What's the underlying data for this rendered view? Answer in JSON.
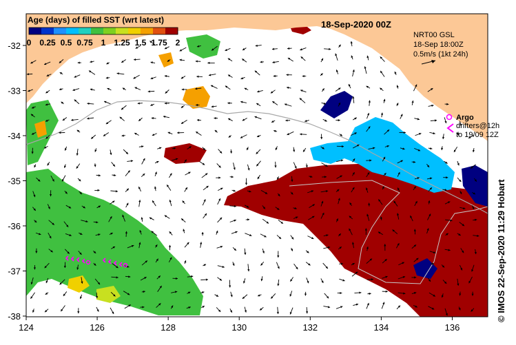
{
  "colorbar": {
    "title": "Age (days) of filled SST (wrt latest)",
    "ticks": [
      "0",
      "0.25",
      "0.5",
      "0.75",
      "1",
      "1.25",
      "1.5",
      "1.75",
      "2"
    ],
    "colors": [
      "#000080",
      "#0033cc",
      "#1e90ff",
      "#00bfff",
      "#20d0c0",
      "#40c040",
      "#7fd020",
      "#c8e020",
      "#f0d000",
      "#f5a000",
      "#e05010",
      "#a00000"
    ]
  },
  "map": {
    "date_title": "18-Sep-2020 00Z",
    "x_ticks": [
      "124",
      "126",
      "128",
      "130",
      "132",
      "134",
      "136"
    ],
    "y_ticks": [
      "-32",
      "-33",
      "-34",
      "-35",
      "-36",
      "-37",
      "-38"
    ],
    "land_color": "#fcc896",
    "ocean_color": "#ffffff",
    "current_arrow_icon": "arrow-icon"
  },
  "current_legend": {
    "line1": "NRT00 GSL",
    "line2": "18-Sep 18:00Z",
    "line3": "0.5m/s (1kt 24h)"
  },
  "argo_legend": {
    "argo_label": "Argo",
    "drifters_label": "drifters@12h",
    "drifters_date": "to 19/09 12Z",
    "marker_color": "#ff00ff"
  },
  "credit": "© IMOS 22-Sep-2020 11:29 Hobart"
}
